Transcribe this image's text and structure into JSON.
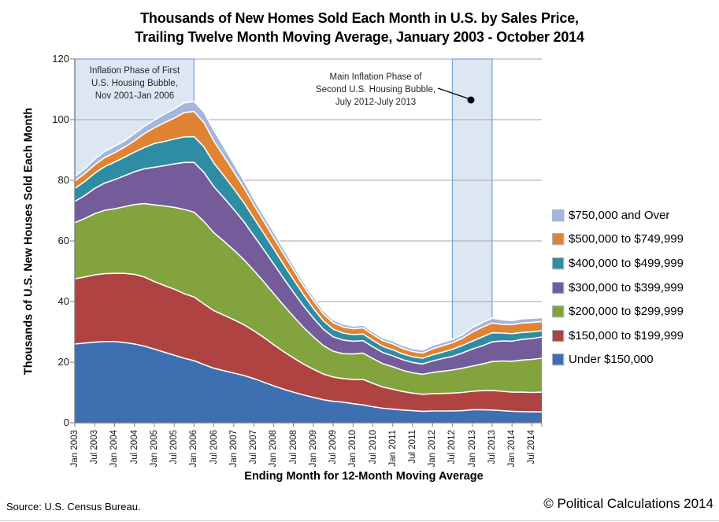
{
  "title": {
    "line1": "Thousands of New Homes Sold Each Month in U.S. by Sales Price,",
    "line2": "Trailing Twelve Month Moving Average, January 2003 - October 2014"
  },
  "y_axis": {
    "label": "Thousands of U.S. New Houses Sold Each Month",
    "ticks": [
      0,
      20,
      40,
      60,
      80,
      100,
      120
    ]
  },
  "x_axis": {
    "label": "Ending Month for 12-Month Moving Average",
    "tick_labels": [
      "Jan 2003",
      "Jul 2003",
      "Jan 2004",
      "Jul 2004",
      "Jan 2005",
      "Jul 2005",
      "Jan 2006",
      "Jul 2006",
      "Jan 2007",
      "Jul 2007",
      "Jan 2008",
      "Jul 2008",
      "Jan 2009",
      "Jul 2009",
      "Jan 2010",
      "Jul 2010",
      "Jan 2011",
      "Jul 2011",
      "Jan 2012",
      "Jul 2012",
      "Jan 2013",
      "Jul 2013",
      "Jan 2014",
      "Jul 2014"
    ]
  },
  "legend": [
    {
      "label": "$750,000 and Over",
      "color": "#A5B6DB"
    },
    {
      "label": "$500,000 to $749,999",
      "color": "#E08434"
    },
    {
      "label": "$400,000 to $499,999",
      "color": "#2F8DA3"
    },
    {
      "label": "$300,000 to $399,999",
      "color": "#745C9B"
    },
    {
      "label": "$200,000 to $299,999",
      "color": "#82A33D"
    },
    {
      "label": "$150,000 to $199,999",
      "color": "#AF4341"
    },
    {
      "label": "Under $150,000",
      "color": "#3E6FB0"
    }
  ],
  "footer": {
    "source": "Source: U.S. Census Bureau.",
    "copyright": "© Political Calculations 2014"
  },
  "chart_data": {
    "type": "area",
    "stacked": true,
    "title": "Thousands of New Homes Sold Each Month in U.S. by Sales Price, Trailing Twelve Month Moving Average, January 2003 - October 2014",
    "xlabel": "Ending Month for 12-Month Moving Average",
    "ylabel": "Thousands of U.S. New Houses Sold Each Month",
    "ylim": [
      0,
      120
    ],
    "grid": true,
    "legend_position": "right",
    "units": "thousands of homes per month (trailing 12-month average)",
    "x": [
      "Jan 2003",
      "Apr 2003",
      "Jul 2003",
      "Oct 2003",
      "Jan 2004",
      "Apr 2004",
      "Jul 2004",
      "Oct 2004",
      "Jan 2005",
      "Apr 2005",
      "Jul 2005",
      "Oct 2005",
      "Jan 2006",
      "Apr 2006",
      "Jul 2006",
      "Oct 2006",
      "Jan 2007",
      "Apr 2007",
      "Jul 2007",
      "Oct 2007",
      "Jan 2008",
      "Apr 2008",
      "Jul 2008",
      "Oct 2008",
      "Jan 2009",
      "Apr 2009",
      "Jul 2009",
      "Oct 2009",
      "Jan 2010",
      "Apr 2010",
      "Jul 2010",
      "Oct 2010",
      "Jan 2011",
      "Apr 2011",
      "Jul 2011",
      "Oct 2011",
      "Jan 2012",
      "Apr 2012",
      "Jul 2012",
      "Oct 2012",
      "Jan 2013",
      "Apr 2013",
      "Jul 2013",
      "Oct 2013",
      "Jan 2014",
      "Apr 2014",
      "Jul 2014",
      "Oct 2014"
    ],
    "series": [
      {
        "name": "Under $150,000",
        "color": "#3E6FB0",
        "values": [
          26.0,
          26.3,
          26.6,
          26.8,
          26.8,
          26.5,
          26.0,
          25.3,
          24.3,
          23.3,
          22.3,
          21.3,
          20.5,
          19.2,
          18.0,
          17.2,
          16.4,
          15.6,
          14.6,
          13.4,
          12.2,
          11.1,
          10.1,
          9.2,
          8.4,
          7.6,
          7.1,
          6.8,
          6.3,
          5.9,
          5.3,
          4.8,
          4.5,
          4.2,
          4.0,
          3.8,
          3.9,
          3.9,
          3.9,
          4.0,
          4.3,
          4.3,
          4.2,
          4.0,
          3.8,
          3.7,
          3.6,
          3.6
        ]
      },
      {
        "name": "$150,000 to $199,999",
        "color": "#AF4341",
        "values": [
          21.5,
          21.8,
          22.2,
          22.4,
          22.5,
          22.8,
          23.0,
          22.8,
          22.3,
          22.0,
          21.8,
          21.3,
          21.0,
          20.0,
          19.0,
          18.3,
          17.6,
          16.8,
          15.8,
          14.8,
          13.6,
          12.4,
          11.3,
          10.2,
          9.3,
          8.5,
          8.0,
          7.8,
          8.0,
          8.4,
          7.7,
          7.0,
          6.6,
          6.1,
          5.8,
          5.6,
          5.7,
          5.8,
          5.9,
          6.0,
          6.1,
          6.3,
          6.5,
          6.4,
          6.3,
          6.4,
          6.4,
          6.5
        ]
      },
      {
        "name": "$200,000 to $299,999",
        "color": "#82A33D",
        "values": [
          18.5,
          19.3,
          20.2,
          20.9,
          21.3,
          22.0,
          23.0,
          24.2,
          25.3,
          26.2,
          27.0,
          27.8,
          28.0,
          27.2,
          25.7,
          24.4,
          23.0,
          21.5,
          19.9,
          18.4,
          16.9,
          15.3,
          13.7,
          12.1,
          10.7,
          9.4,
          8.5,
          8.2,
          8.4,
          8.7,
          8.2,
          7.7,
          7.4,
          7.0,
          6.7,
          6.6,
          7.0,
          7.3,
          7.6,
          8.0,
          8.3,
          8.8,
          9.5,
          10.0,
          10.2,
          10.6,
          10.9,
          11.2
        ]
      },
      {
        "name": "$300,000 to $399,999",
        "color": "#745C9B",
        "values": [
          7.0,
          7.6,
          8.3,
          9.0,
          9.6,
          10.2,
          10.8,
          11.5,
          12.4,
          13.3,
          14.3,
          15.5,
          16.4,
          16.2,
          15.2,
          14.3,
          13.4,
          12.5,
          11.5,
          10.6,
          9.8,
          8.9,
          8.0,
          7.1,
          6.2,
          5.4,
          4.8,
          4.5,
          4.2,
          4.1,
          3.9,
          3.7,
          3.6,
          3.5,
          3.4,
          3.4,
          3.8,
          4.2,
          4.5,
          5.0,
          5.6,
          6.0,
          6.5,
          6.6,
          6.6,
          6.8,
          6.9,
          7.0
        ]
      },
      {
        "name": "$400,000 to $499,999",
        "color": "#2F8DA3",
        "values": [
          4.3,
          4.6,
          5.0,
          5.4,
          5.8,
          6.1,
          6.5,
          7.0,
          7.8,
          8.0,
          8.2,
          8.4,
          8.5,
          8.4,
          7.8,
          7.3,
          6.8,
          6.3,
          5.8,
          5.4,
          5.0,
          4.6,
          4.2,
          3.8,
          3.2,
          2.8,
          2.5,
          2.3,
          2.2,
          2.2,
          2.1,
          2.0,
          2.0,
          1.9,
          1.9,
          1.9,
          2.0,
          2.1,
          2.3,
          2.5,
          2.6,
          2.9,
          3.0,
          2.6,
          2.5,
          2.3,
          2.2,
          2.1
        ]
      },
      {
        "name": "$500,000 to $749,999",
        "color": "#E08434",
        "values": [
          2.5,
          2.6,
          2.8,
          3.0,
          3.1,
          3.3,
          3.7,
          4.6,
          5.2,
          6.2,
          6.9,
          8.0,
          8.3,
          8.0,
          7.2,
          6.4,
          5.6,
          5.0,
          4.4,
          4.0,
          3.7,
          3.5,
          3.2,
          2.8,
          2.6,
          2.3,
          2.1,
          2.0,
          1.9,
          2.0,
          1.9,
          1.9,
          1.9,
          1.8,
          1.7,
          1.7,
          2.0,
          2.1,
          2.2,
          2.4,
          3.0,
          3.2,
          3.2,
          2.9,
          3.0,
          3.1,
          3.1,
          3.0
        ]
      },
      {
        "name": "$750,000 and Over",
        "color": "#A5B6DB",
        "values": [
          1.5,
          1.6,
          1.9,
          2.0,
          2.1,
          2.1,
          2.4,
          2.4,
          2.6,
          2.8,
          3.0,
          3.2,
          3.3,
          3.5,
          3.6,
          3.1,
          2.7,
          2.3,
          2.0,
          1.9,
          1.8,
          1.7,
          1.5,
          1.3,
          1.2,
          1.1,
          1.0,
          1.0,
          0.9,
          0.9,
          0.9,
          0.9,
          1.0,
          1.0,
          1.0,
          1.0,
          1.1,
          1.1,
          1.1,
          1.1,
          1.5,
          1.5,
          1.6,
          1.5,
          1.3,
          1.4,
          1.4,
          1.3
        ]
      }
    ],
    "highlight_bands": [
      {
        "label_lines": [
          "Inflation Phase of First",
          "U.S. Housing Bubble,",
          "Nov 2001-Jan 2006"
        ],
        "from_month": 0,
        "to_month": 36,
        "fill": "#DCE7F3",
        "border": "#7FA5D6"
      },
      {
        "label_lines": [
          "Main Inflation Phase of",
          "Second U.S. Housing Bubble,",
          "July 2012-July 2013"
        ],
        "from_month": 114,
        "to_month": 126,
        "fill": "#DCE7F3",
        "border": "#7FA5D6"
      }
    ]
  }
}
